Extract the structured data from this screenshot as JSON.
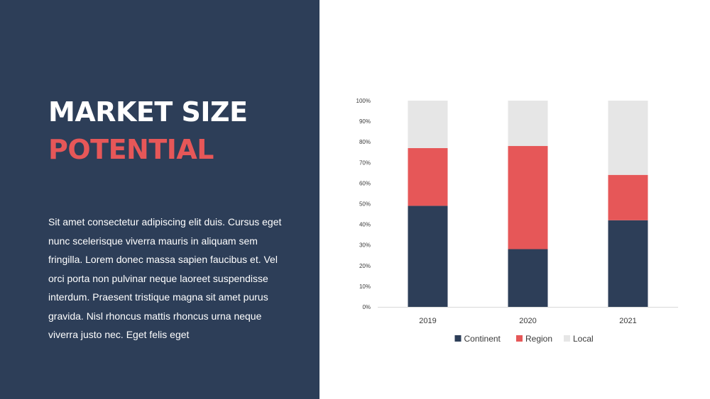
{
  "slide": {
    "title_line1": "MARKET SIZE",
    "title_line2": "POTENTIAL",
    "body": "Sit amet consectetur adipiscing elit duis. Cursus eget nunc scelerisque viverra mauris in aliquam sem fringilla. Lorem donec massa sapien faucibus et. Vel orci porta non pulvinar neque laoreet suspendisse interdum. Praesent tristique magna sit amet purus gravida. Nisl rhoncus mattis rhoncus urna neque viverra justo nec. Eget felis eget"
  },
  "colors": {
    "panel": "#2d3e58",
    "accent": "#e65758",
    "Continent": "#2d3e58",
    "Region": "#e65758",
    "Local": "#e6e6e6"
  },
  "chart_data": {
    "type": "bar",
    "stacked": true,
    "categories": [
      "2019",
      "2020",
      "2021"
    ],
    "series": [
      {
        "name": "Continent",
        "values": [
          49,
          28,
          42
        ]
      },
      {
        "name": "Region",
        "values": [
          28,
          50,
          22
        ]
      },
      {
        "name": "Local",
        "values": [
          23,
          22,
          36
        ]
      }
    ],
    "ylim": [
      0,
      100
    ],
    "yticks": [
      "0%",
      "10%",
      "20%",
      "30%",
      "40%",
      "50%",
      "60%",
      "70%",
      "80%",
      "90%",
      "100%"
    ],
    "grid": false,
    "legend_position": "bottom"
  }
}
